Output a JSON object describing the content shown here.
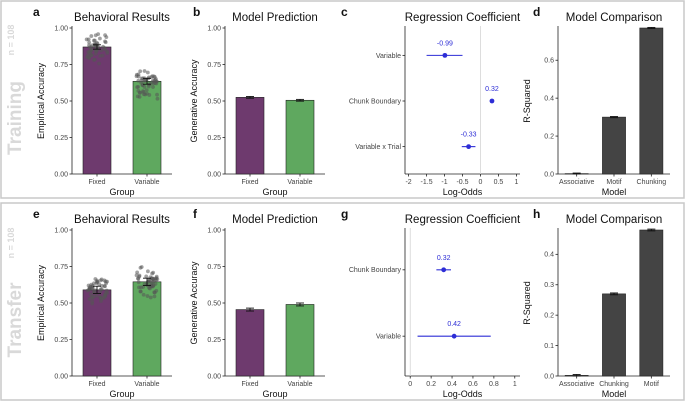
{
  "rows": [
    {
      "label": "Training",
      "n_label": "n = 108"
    },
    {
      "label": "Transfer",
      "n_label": "n = 108"
    }
  ],
  "colors": {
    "fixed": "#6e3a6e",
    "variable": "#5fa85f",
    "model_bar": "#444444",
    "coef": "#2d2dd6",
    "frame": "#c8c8c8"
  },
  "chart_data": [
    {
      "panel": "a",
      "type": "bar",
      "title": "Behavioral Results",
      "xlabel": "Group",
      "ylabel": "Empirical Accuracy",
      "categories": [
        "Fixed",
        "Variable"
      ],
      "values": [
        0.87,
        0.635
      ],
      "errors": [
        0.015,
        0.02
      ],
      "ylim": [
        0,
        1
      ],
      "yticks": [
        "0.00",
        "0.25",
        "0.50",
        "0.75",
        "1.00"
      ],
      "jitter": true
    },
    {
      "panel": "b",
      "type": "bar",
      "title": "Model Prediction",
      "xlabel": "Group",
      "ylabel": "Generative Accuracy",
      "categories": [
        "Fixed",
        "Variable"
      ],
      "values": [
        0.525,
        0.505
      ],
      "errors": [
        0.006,
        0.006
      ],
      "ylim": [
        0,
        1
      ],
      "yticks": [
        "0.00",
        "0.25",
        "0.50",
        "0.75",
        "1.00"
      ]
    },
    {
      "panel": "c",
      "type": "scatter",
      "title": "Regression Coefficient",
      "xlabel": "Log-Odds",
      "categories": [
        "Variable",
        "Chunk Boundary",
        "Variable x Trial"
      ],
      "values": [
        -0.99,
        0.32,
        -0.33
      ],
      "value_labels": [
        "-0.99",
        "0.32",
        "-0.33"
      ],
      "ci": [
        [
          -1.5,
          -0.5
        ],
        [
          0.27,
          0.37
        ],
        [
          -0.52,
          -0.14
        ]
      ],
      "xlim": [
        -2.1,
        1.1
      ],
      "xticks": [
        "-2",
        "-1.5",
        "-1",
        "-0.5",
        "0",
        "0.5",
        "1"
      ]
    },
    {
      "panel": "d",
      "type": "bar",
      "title": "Model Comparison",
      "xlabel": "Model",
      "ylabel": "R-Squared",
      "categories": [
        "Associative",
        "Motif",
        "Chunking"
      ],
      "values": [
        0.002,
        0.3,
        0.77
      ],
      "ylim": [
        0,
        0.77
      ],
      "yticks": [
        "0.0",
        "0.2",
        "0.4",
        "0.6"
      ]
    },
    {
      "panel": "e",
      "type": "bar",
      "title": "Behavioral Results",
      "xlabel": "Group",
      "ylabel": "Empirical Accuracy",
      "categories": [
        "Fixed",
        "Variable"
      ],
      "values": [
        0.59,
        0.645
      ],
      "errors": [
        0.025,
        0.025
      ],
      "ylim": [
        0,
        1
      ],
      "yticks": [
        "0.00",
        "0.25",
        "0.50",
        "0.75",
        "1.00"
      ],
      "jitter": true
    },
    {
      "panel": "f",
      "type": "bar",
      "title": "Model Prediction",
      "xlabel": "Group",
      "ylabel": "Generative Accuracy",
      "categories": [
        "Fixed",
        "Variable"
      ],
      "values": [
        0.455,
        0.49
      ],
      "errors": [
        0.01,
        0.01
      ],
      "ylim": [
        0,
        1
      ],
      "yticks": [
        "0.00",
        "0.25",
        "0.50",
        "0.75",
        "1.00"
      ]
    },
    {
      "panel": "g",
      "type": "scatter",
      "title": "Regression Coefficient",
      "xlabel": "Log-Odds",
      "categories": [
        "Chunk Boundary",
        "Variable"
      ],
      "values": [
        0.32,
        0.42
      ],
      "value_labels": [
        "0.32",
        "0.42"
      ],
      "ci": [
        [
          0.25,
          0.39
        ],
        [
          0.07,
          0.77
        ]
      ],
      "xlim": [
        -0.05,
        1.05
      ],
      "xticks": [
        "0",
        "0.2",
        "0.4",
        "0.6",
        "0.8",
        "1"
      ]
    },
    {
      "panel": "h",
      "type": "bar",
      "title": "Model Comparison",
      "xlabel": "Model",
      "ylabel": "R-Squared",
      "categories": [
        "Associative",
        "Chunking",
        "Motif"
      ],
      "values": [
        0.002,
        0.27,
        0.48
      ],
      "ylim": [
        0,
        0.48
      ],
      "yticks": [
        "0.0",
        "0.1",
        "0.2",
        "0.3",
        "0.4"
      ]
    }
  ]
}
